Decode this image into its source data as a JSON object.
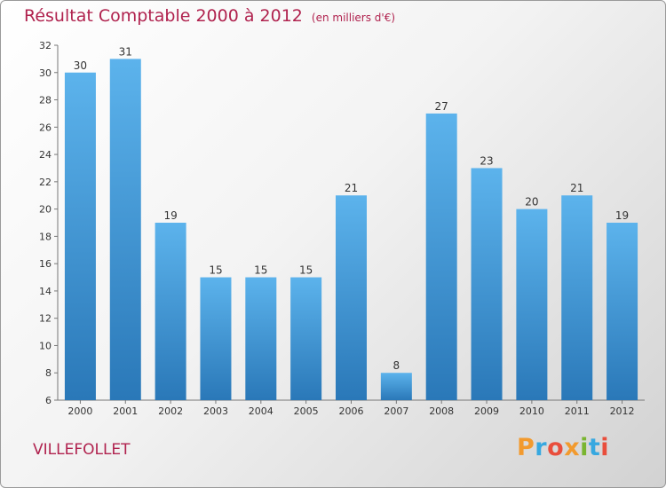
{
  "title": "Résultat Comptable 2000 à 2012",
  "unit_note": "(en milliers d'€)",
  "place": "VILLEFOLLET",
  "logo": {
    "letters": [
      "P",
      "r",
      "o",
      "x",
      "i",
      "t",
      "i"
    ],
    "colors": [
      "#f29a2e",
      "#37a8e0",
      "#e94e3c",
      "#f29a2e",
      "#7ab530",
      "#37a8e0",
      "#e94e3c"
    ]
  },
  "chart_data": {
    "type": "bar",
    "categories": [
      "2000",
      "2001",
      "2002",
      "2003",
      "2004",
      "2005",
      "2006",
      "2007",
      "2008",
      "2009",
      "2010",
      "2011",
      "2012"
    ],
    "values": [
      30,
      31,
      19,
      15,
      15,
      15,
      21,
      8,
      27,
      23,
      20,
      21,
      19
    ],
    "ylim": [
      6,
      32
    ],
    "yticks": [
      6,
      8,
      10,
      12,
      14,
      16,
      18,
      20,
      22,
      24,
      26,
      28,
      30,
      32
    ],
    "grid": false,
    "bar_color": "#3d94d6"
  }
}
